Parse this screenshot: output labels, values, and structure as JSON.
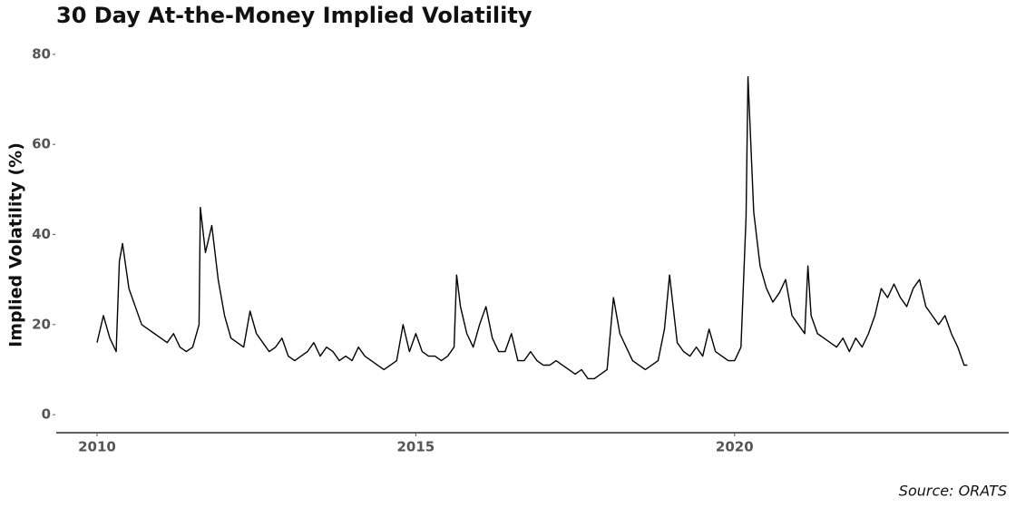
{
  "chart_data": {
    "type": "line",
    "title": "30 Day At-the-Money Implied Volatility",
    "ylabel": "Implied Volatility (%)",
    "source": "Source: ORATS",
    "x": [
      2010.0,
      2010.1,
      2010.2,
      2010.3,
      2010.35,
      2010.4,
      2010.5,
      2010.6,
      2010.7,
      2010.8,
      2010.9,
      2011.0,
      2011.1,
      2011.2,
      2011.3,
      2011.4,
      2011.5,
      2011.6,
      2011.62,
      2011.7,
      2011.8,
      2011.9,
      2012.0,
      2012.1,
      2012.2,
      2012.3,
      2012.4,
      2012.5,
      2012.6,
      2012.7,
      2012.8,
      2012.9,
      2013.0,
      2013.1,
      2013.2,
      2013.3,
      2013.4,
      2013.5,
      2013.6,
      2013.7,
      2013.8,
      2013.9,
      2014.0,
      2014.1,
      2014.2,
      2014.3,
      2014.4,
      2014.5,
      2014.6,
      2014.7,
      2014.8,
      2014.9,
      2015.0,
      2015.1,
      2015.2,
      2015.3,
      2015.4,
      2015.5,
      2015.6,
      2015.64,
      2015.7,
      2015.8,
      2015.9,
      2016.0,
      2016.1,
      2016.2,
      2016.3,
      2016.4,
      2016.5,
      2016.6,
      2016.7,
      2016.8,
      2016.9,
      2017.0,
      2017.1,
      2017.2,
      2017.3,
      2017.4,
      2017.5,
      2017.6,
      2017.7,
      2017.8,
      2017.9,
      2018.0,
      2018.1,
      2018.2,
      2018.3,
      2018.4,
      2018.5,
      2018.6,
      2018.7,
      2018.8,
      2018.9,
      2018.98,
      2019.1,
      2019.2,
      2019.3,
      2019.4,
      2019.5,
      2019.6,
      2019.7,
      2019.8,
      2019.9,
      2020.0,
      2020.1,
      2020.18,
      2020.21,
      2020.3,
      2020.4,
      2020.5,
      2020.6,
      2020.7,
      2020.8,
      2020.9,
      2021.0,
      2021.1,
      2021.15,
      2021.2,
      2021.3,
      2021.4,
      2021.5,
      2021.6,
      2021.7,
      2021.8,
      2021.9,
      2022.0,
      2022.1,
      2022.2,
      2022.3,
      2022.4,
      2022.5,
      2022.6,
      2022.7,
      2022.8,
      2022.9,
      2023.0,
      2023.1,
      2023.2,
      2023.3,
      2023.4,
      2023.5,
      2023.6,
      2023.65
    ],
    "series": [
      {
        "name": "Implied Volatility",
        "color": "#000000",
        "values": [
          16,
          22,
          17,
          14,
          34,
          38,
          28,
          24,
          20,
          19,
          18,
          17,
          16,
          18,
          15,
          14,
          15,
          20,
          46,
          36,
          42,
          30,
          22,
          17,
          16,
          15,
          23,
          18,
          16,
          14,
          15,
          17,
          13,
          12,
          13,
          14,
          16,
          13,
          15,
          14,
          12,
          13,
          12,
          15,
          13,
          12,
          11,
          10,
          11,
          12,
          20,
          14,
          18,
          14,
          13,
          13,
          12,
          13,
          15,
          31,
          24,
          18,
          15,
          20,
          24,
          17,
          14,
          14,
          18,
          12,
          12,
          14,
          12,
          11,
          11,
          12,
          11,
          10,
          9,
          10,
          8,
          8,
          9,
          10,
          26,
          18,
          15,
          12,
          11,
          10,
          11,
          12,
          19,
          31,
          16,
          14,
          13,
          15,
          13,
          19,
          14,
          13,
          12,
          12,
          15,
          44,
          75,
          45,
          33,
          28,
          25,
          27,
          30,
          22,
          20,
          18,
          33,
          22,
          18,
          17,
          16,
          15,
          17,
          14,
          17,
          15,
          18,
          22,
          28,
          26,
          29,
          26,
          24,
          28,
          30,
          24,
          22,
          20,
          22,
          18,
          15,
          11,
          11
        ]
      }
    ],
    "xlim": [
      2009.36,
      2024.3
    ],
    "xticks": [
      2010,
      2015,
      2020
    ],
    "ylim": [
      -4,
      84
    ],
    "yticks": [
      0,
      20,
      40,
      60,
      80
    ],
    "grid": false
  }
}
